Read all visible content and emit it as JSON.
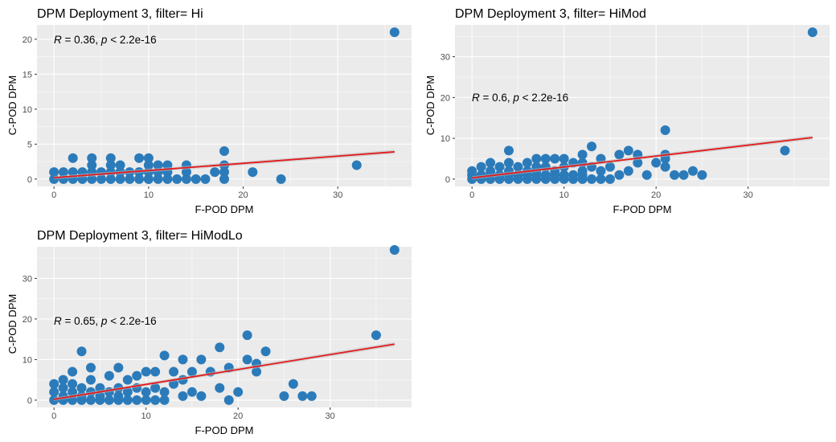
{
  "colors": {
    "panel_background": "#ebebeb",
    "grid_major": "#ffffff",
    "point": "#2b7bba",
    "regression_line": "#e31a1c",
    "confidence_band": "#bdbdbd"
  },
  "chart_data": [
    {
      "type": "scatter",
      "title": "DPM Deployment 3, filter= Hi",
      "xlabel": "F-POD DPM",
      "ylabel": "C-POD DPM",
      "xlim": [
        -1.8,
        37.8
      ],
      "ylim": [
        -1.05,
        22.05
      ],
      "xticks": [
        0,
        10,
        20,
        30
      ],
      "yticks": [
        0,
        5,
        10,
        15,
        20
      ],
      "grid": true,
      "annotation": {
        "r_symbol": "R",
        "r_text": " = 0.36, ",
        "p_symbol": "p",
        "p_text": " < 2.2e-16"
      },
      "regression": {
        "x": [
          0,
          36
        ],
        "y": [
          0.2,
          3.9
        ]
      },
      "points": {
        "x": [
          0,
          0,
          1,
          1,
          2,
          2,
          2,
          3,
          3,
          4,
          4,
          4,
          4,
          5,
          5,
          6,
          6,
          6,
          6,
          7,
          7,
          7,
          8,
          8,
          9,
          9,
          9,
          10,
          10,
          10,
          10,
          10,
          11,
          11,
          11,
          12,
          12,
          12,
          13,
          14,
          14,
          14,
          15,
          16,
          17,
          18,
          18,
          18,
          18,
          21,
          24,
          32,
          36
        ],
        "y": [
          0,
          1,
          0,
          1,
          0,
          1,
          3,
          0,
          1,
          0,
          1,
          2,
          3,
          0,
          1,
          0,
          1,
          2,
          3,
          0,
          1,
          2,
          0,
          1,
          0,
          1,
          3,
          0,
          1,
          2,
          3,
          0,
          0,
          1,
          2,
          0,
          1,
          2,
          0,
          1,
          2,
          0,
          0,
          0,
          1,
          0,
          1,
          2,
          4,
          1,
          0,
          2,
          21
        ]
      }
    },
    {
      "type": "scatter",
      "title": "DPM Deployment 3, filter= HiMod",
      "xlabel": "F-POD DPM",
      "ylabel": "C-POD DPM",
      "xlim": [
        -1.85,
        38.85
      ],
      "ylim": [
        -1.8,
        37.8
      ],
      "xticks": [
        0,
        10,
        20,
        30
      ],
      "yticks": [
        0,
        10,
        20,
        30
      ],
      "grid": true,
      "annotation": {
        "r_symbol": "R",
        "r_text": " = 0.6, ",
        "p_symbol": "p",
        "p_text": " < 2.2e-16"
      },
      "regression": {
        "x": [
          0,
          37
        ],
        "y": [
          0.3,
          10.2
        ]
      },
      "points": {
        "x": [
          0,
          0,
          0,
          1,
          1,
          1,
          2,
          2,
          2,
          2,
          3,
          3,
          3,
          4,
          4,
          4,
          4,
          4,
          5,
          5,
          5,
          6,
          6,
          6,
          6,
          7,
          7,
          7,
          7,
          7,
          8,
          8,
          8,
          8,
          9,
          9,
          9,
          9,
          10,
          10,
          10,
          10,
          11,
          11,
          11,
          12,
          12,
          12,
          12,
          12,
          13,
          13,
          13,
          14,
          14,
          14,
          15,
          15,
          16,
          16,
          17,
          17,
          18,
          18,
          19,
          20,
          21,
          21,
          21,
          21,
          22,
          23,
          24,
          25,
          34,
          37
        ],
        "y": [
          0,
          1,
          2,
          0,
          1,
          3,
          0,
          1,
          2,
          4,
          0,
          1,
          3,
          0,
          1,
          2,
          4,
          7,
          0,
          1,
          3,
          0,
          1,
          2,
          4,
          0,
          1,
          2,
          3,
          5,
          0,
          1,
          3,
          5,
          0,
          1,
          2,
          5,
          0,
          1,
          3,
          5,
          0,
          1,
          4,
          0,
          1,
          2,
          4,
          6,
          0,
          3,
          8,
          0,
          2,
          5,
          0,
          3,
          1,
          6,
          2,
          7,
          4,
          6,
          1,
          4,
          3,
          5,
          6,
          12,
          1,
          1,
          2,
          1,
          7,
          36
        ]
      }
    },
    {
      "type": "scatter",
      "title": "DPM Deployment 3, filter= HiModLo",
      "xlabel": "F-POD DPM",
      "ylabel": "C-POD DPM",
      "xlim": [
        -1.85,
        38.85
      ],
      "ylim": [
        -1.8,
        37.8
      ],
      "xticks": [
        0,
        10,
        20,
        30
      ],
      "yticks": [
        0,
        10,
        20,
        30
      ],
      "grid": true,
      "annotation": {
        "r_symbol": "R",
        "r_text": " = 0.65, ",
        "p_symbol": "p",
        "p_text": " < 2.2e-16"
      },
      "regression": {
        "x": [
          0,
          37
        ],
        "y": [
          0.2,
          13.8
        ]
      },
      "points": {
        "x": [
          0,
          0,
          0,
          1,
          1,
          1,
          1,
          2,
          2,
          2,
          2,
          3,
          3,
          3,
          3,
          4,
          4,
          4,
          4,
          5,
          5,
          5,
          6,
          6,
          6,
          7,
          7,
          7,
          7,
          8,
          8,
          8,
          9,
          9,
          9,
          10,
          10,
          10,
          11,
          11,
          11,
          12,
          12,
          12,
          13,
          13,
          14,
          14,
          14,
          15,
          15,
          16,
          16,
          17,
          18,
          18,
          19,
          19,
          20,
          21,
          21,
          22,
          22,
          23,
          25,
          26,
          27,
          28,
          35,
          37
        ],
        "y": [
          0,
          2,
          4,
          0,
          1,
          3,
          5,
          0,
          2,
          4,
          7,
          0,
          1,
          3,
          12,
          0,
          2,
          5,
          8,
          0,
          1,
          3,
          0,
          2,
          6,
          0,
          1,
          3,
          8,
          0,
          2,
          5,
          0,
          3,
          6,
          0,
          2,
          7,
          0,
          3,
          7,
          0,
          2,
          11,
          4,
          7,
          1,
          5,
          10,
          2,
          7,
          1,
          10,
          7,
          3,
          13,
          0,
          8,
          2,
          10,
          16,
          7,
          9,
          12,
          1,
          4,
          1,
          1,
          16,
          37
        ]
      }
    }
  ]
}
